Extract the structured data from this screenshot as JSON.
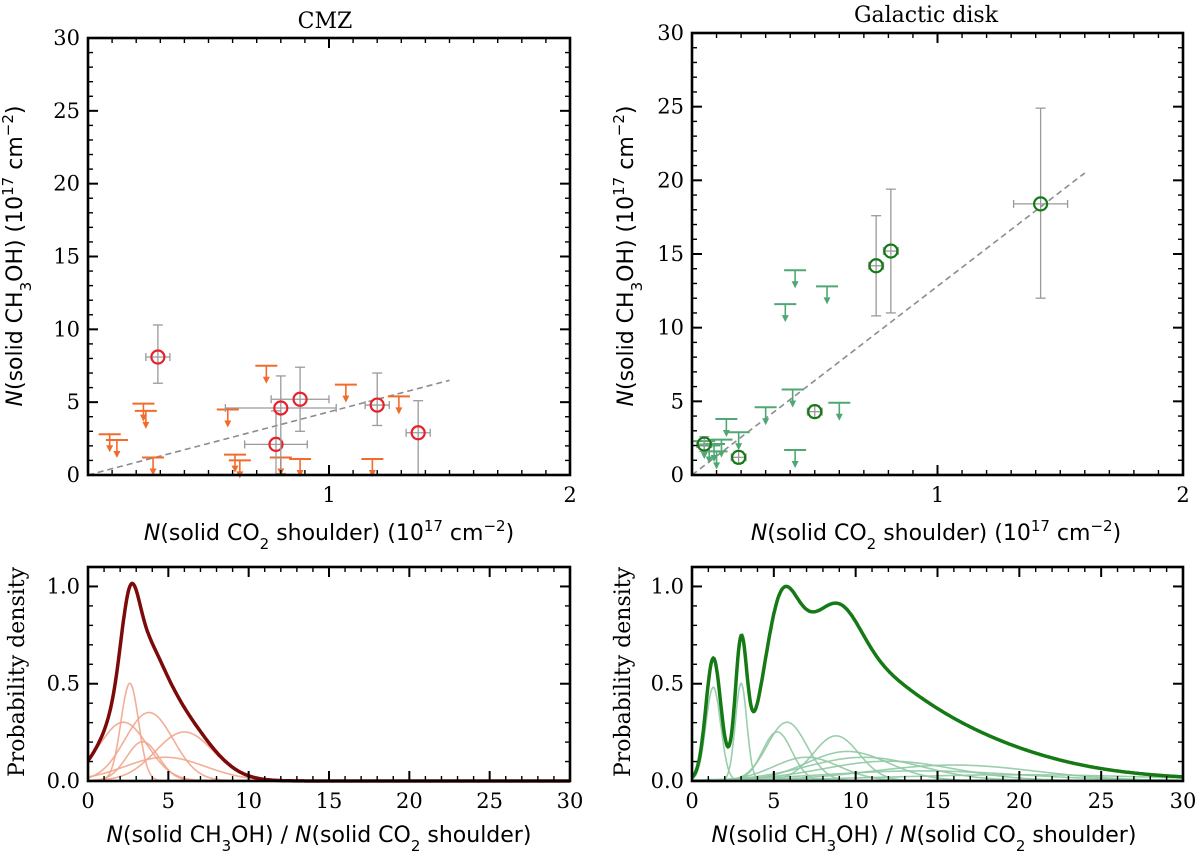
{
  "chart_data": [
    {
      "id": "cmz_scatter",
      "type": "scatter",
      "title": "CMZ",
      "xlabel": "N(solid CO2 shoulder) (10^17 cm^-2)",
      "ylabel": "N(solid CH3OH) (10^17 cm^-2)",
      "xlim": [
        0,
        2
      ],
      "ylim": [
        0,
        30
      ],
      "xticks": [
        1,
        2
      ],
      "yticks": [
        0,
        5,
        10,
        15,
        20,
        25,
        30
      ],
      "detections": [
        {
          "x": 0.29,
          "y": 8.1,
          "xerr": 0.05,
          "yerr_lo": 1.8,
          "yerr_hi": 2.2
        },
        {
          "x": 0.78,
          "y": 2.1,
          "xerr": 0.13,
          "yerr_lo": 2.1,
          "yerr_hi": 2.3
        },
        {
          "x": 0.8,
          "y": 4.6,
          "xerr": 0.23,
          "yerr_lo": 4.5,
          "yerr_hi": 2.2
        },
        {
          "x": 0.88,
          "y": 5.2,
          "xerr": 0.12,
          "yerr_lo": 2.2,
          "yerr_hi": 2.2
        },
        {
          "x": 1.2,
          "y": 4.8,
          "xerr": 0.05,
          "yerr_lo": 1.4,
          "yerr_hi": 2.2
        },
        {
          "x": 1.37,
          "y": 2.9,
          "xerr": 0.05,
          "yerr_lo": 2.9,
          "yerr_hi": 2.2
        }
      ],
      "upper_limits": [
        {
          "x": 0.09,
          "y": 2.8
        },
        {
          "x": 0.12,
          "y": 2.4
        },
        {
          "x": 0.23,
          "y": 4.9
        },
        {
          "x": 0.24,
          "y": 4.4
        },
        {
          "x": 0.27,
          "y": 1.2
        },
        {
          "x": 0.58,
          "y": 4.5
        },
        {
          "x": 0.61,
          "y": 1.4
        },
        {
          "x": 0.63,
          "y": 1.0
        },
        {
          "x": 0.74,
          "y": 7.5
        },
        {
          "x": 0.8,
          "y": 1.2
        },
        {
          "x": 0.88,
          "y": 1.1
        },
        {
          "x": 1.07,
          "y": 6.2
        },
        {
          "x": 1.18,
          "y": 1.1
        },
        {
          "x": 1.29,
          "y": 5.4
        }
      ],
      "fit_line": {
        "x": [
          0.0,
          1.5
        ],
        "y": [
          0.0,
          6.5
        ]
      },
      "colors": {
        "detection": "#e8202a",
        "upper_limit": "#f26b2a",
        "errorbar": "#9a9a9a",
        "fit": "#8c8c8c"
      }
    },
    {
      "id": "disk_scatter",
      "type": "scatter",
      "title": "Galactic disk",
      "xlabel": "N(solid CO2 shoulder) (10^17 cm^-2)",
      "ylabel": "N(solid CH3OH) (10^17 cm^-2)",
      "xlim": [
        0,
        2
      ],
      "ylim": [
        0,
        30
      ],
      "xticks": [
        1,
        2
      ],
      "yticks": [
        0,
        5,
        10,
        15,
        20,
        25,
        30
      ],
      "detections": [
        {
          "x": 0.05,
          "y": 2.1,
          "xerr": 0.03,
          "yerr_lo": 0.5,
          "yerr_hi": 0.5
        },
        {
          "x": 0.19,
          "y": 1.2,
          "xerr": 0.03,
          "yerr_lo": 0.4,
          "yerr_hi": 0.4
        },
        {
          "x": 0.5,
          "y": 4.3,
          "xerr": 0.03,
          "yerr_lo": 0.4,
          "yerr_hi": 0.4
        },
        {
          "x": 0.75,
          "y": 14.2,
          "xerr": 0.03,
          "yerr_lo": 3.4,
          "yerr_hi": 3.4
        },
        {
          "x": 0.81,
          "y": 15.2,
          "xerr": 0.03,
          "yerr_lo": 4.2,
          "yerr_hi": 4.2
        },
        {
          "x": 1.42,
          "y": 18.4,
          "xerr": 0.11,
          "yerr_lo": 6.4,
          "yerr_hi": 6.5
        }
      ],
      "upper_limits": [
        {
          "x": 0.05,
          "y": 2.3
        },
        {
          "x": 0.07,
          "y": 2.0
        },
        {
          "x": 0.09,
          "y": 2.1
        },
        {
          "x": 0.1,
          "y": 1.6
        },
        {
          "x": 0.12,
          "y": 2.4
        },
        {
          "x": 0.14,
          "y": 3.8
        },
        {
          "x": 0.19,
          "y": 2.9
        },
        {
          "x": 0.3,
          "y": 4.6
        },
        {
          "x": 0.38,
          "y": 11.6
        },
        {
          "x": 0.41,
          "y": 5.8
        },
        {
          "x": 0.42,
          "y": 1.7
        },
        {
          "x": 0.42,
          "y": 13.9
        },
        {
          "x": 0.55,
          "y": 12.8
        },
        {
          "x": 0.6,
          "y": 4.9
        }
      ],
      "fit_line": {
        "x": [
          0.0,
          1.6
        ],
        "y": [
          0.0,
          20.5
        ]
      },
      "colors": {
        "detection": "#157a15",
        "upper_limit": "#4fa874",
        "errorbar": "#9a9a9a",
        "fit": "#8c8c8c"
      }
    },
    {
      "id": "cmz_pdf",
      "type": "line",
      "xlabel": "N(solid CH3OH) / N(solid CO2 shoulder)",
      "ylabel": "Probability density",
      "xlim": [
        0,
        30
      ],
      "ylim": [
        0,
        1.1
      ],
      "xticks": [
        0,
        5,
        10,
        15,
        20,
        25,
        30
      ],
      "yticks": [
        0.0,
        0.5,
        1.0
      ],
      "components": [
        {
          "mu": 2.6,
          "sigma": 0.55,
          "amp": 0.5
        },
        {
          "mu": 2.2,
          "sigma": 1.5,
          "amp": 0.3
        },
        {
          "mu": 3.8,
          "sigma": 1.5,
          "amp": 0.35
        },
        {
          "mu": 6.0,
          "sigma": 1.8,
          "amp": 0.25
        },
        {
          "mu": 3.4,
          "sigma": 1.0,
          "amp": 0.2
        },
        {
          "mu": 4.8,
          "sigma": 2.5,
          "amp": 0.12
        }
      ],
      "total_peak": {
        "x": 2.6,
        "y": 1.0
      },
      "colors": {
        "total": "#7c0a0a",
        "component": "#f2a58c"
      }
    },
    {
      "id": "disk_pdf",
      "type": "line",
      "xlabel": "N(solid CH3OH) / N(solid CO2 shoulder)",
      "ylabel": "Probability density",
      "xlim": [
        0,
        30
      ],
      "ylim": [
        0,
        1.1
      ],
      "xticks": [
        0,
        5,
        10,
        15,
        20,
        25,
        30
      ],
      "yticks": [
        0.0,
        0.5,
        1.0
      ],
      "components": [
        {
          "mu": 1.3,
          "sigma": 0.45,
          "amp": 0.48
        },
        {
          "mu": 3.0,
          "sigma": 0.35,
          "amp": 0.5
        },
        {
          "mu": 5.8,
          "sigma": 1.2,
          "amp": 0.3
        },
        {
          "mu": 5.2,
          "sigma": 0.9,
          "amp": 0.25
        },
        {
          "mu": 8.8,
          "sigma": 1.4,
          "amp": 0.23
        },
        {
          "mu": 9.5,
          "sigma": 2.5,
          "amp": 0.15
        },
        {
          "mu": 10.5,
          "sigma": 3.5,
          "amp": 0.12
        },
        {
          "mu": 12.0,
          "sigma": 4.0,
          "amp": 0.1
        },
        {
          "mu": 16.0,
          "sigma": 5.0,
          "amp": 0.08
        },
        {
          "mu": 7.0,
          "sigma": 2.0,
          "amp": 0.12
        },
        {
          "mu": 20.0,
          "sigma": 8.0,
          "amp": 0.03
        },
        {
          "mu": 14.0,
          "sigma": 6.0,
          "amp": 0.05
        }
      ],
      "total_peak": {
        "x": 5.8,
        "y": 1.0
      },
      "colors": {
        "total": "#157a15",
        "component": "#8fc9a3"
      }
    }
  ]
}
